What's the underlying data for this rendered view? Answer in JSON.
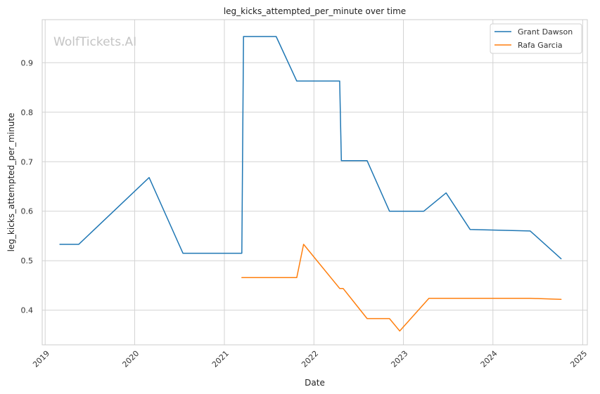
{
  "watermark": "WolfTickets.AI",
  "chart_data": {
    "type": "line",
    "title": "leg_kicks_attempted_per_minute over time",
    "xlabel": "Date",
    "ylabel": "leg_kicks_attempted_per_minute",
    "xlim": [
      "2018-12-20",
      "2025-01-20"
    ],
    "ylim": [
      0.33,
      0.987
    ],
    "x_ticks": [
      "2019",
      "2020",
      "2021",
      "2022",
      "2023",
      "2024",
      "2025"
    ],
    "y_ticks": [
      0.4,
      0.5,
      0.6,
      0.7,
      0.8,
      0.9
    ],
    "grid": true,
    "legend": "top-right",
    "series": [
      {
        "name": "Grant Dawson",
        "color": "#1f77b4",
        "points": [
          [
            "2019-03-02",
            0.533
          ],
          [
            "2019-05-18",
            0.533
          ],
          [
            "2020-02-29",
            0.668
          ],
          [
            "2020-07-16",
            0.515
          ],
          [
            "2021-03-13",
            0.515
          ],
          [
            "2021-03-20",
            0.953
          ],
          [
            "2021-07-31",
            0.953
          ],
          [
            "2021-10-23",
            0.863
          ],
          [
            "2022-04-16",
            0.863
          ],
          [
            "2022-04-23",
            0.702
          ],
          [
            "2022-08-06",
            0.702
          ],
          [
            "2022-11-05",
            0.6
          ],
          [
            "2023-03-25",
            0.6
          ],
          [
            "2023-06-24",
            0.637
          ],
          [
            "2023-09-30",
            0.563
          ],
          [
            "2024-06-01",
            0.56
          ],
          [
            "2024-10-05",
            0.504
          ]
        ]
      },
      {
        "name": "Rafa Garcia",
        "color": "#ff7f0e",
        "points": [
          [
            "2021-03-13",
            0.466
          ],
          [
            "2021-10-23",
            0.466
          ],
          [
            "2021-11-20",
            0.533
          ],
          [
            "2022-04-16",
            0.444
          ],
          [
            "2022-04-30",
            0.444
          ],
          [
            "2022-08-06",
            0.383
          ],
          [
            "2022-11-05",
            0.383
          ],
          [
            "2022-12-17",
            0.358
          ],
          [
            "2023-04-15",
            0.424
          ],
          [
            "2024-06-01",
            0.424
          ],
          [
            "2024-10-05",
            0.422
          ]
        ]
      }
    ]
  }
}
